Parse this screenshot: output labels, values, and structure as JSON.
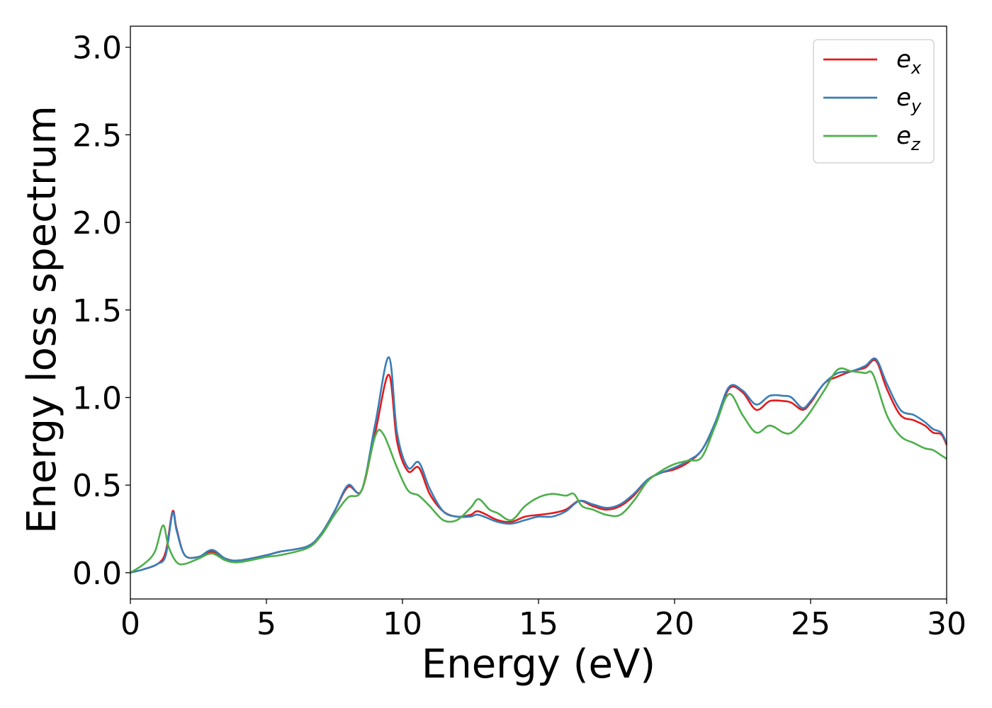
{
  "chart_data": {
    "type": "line",
    "title": "",
    "xlabel": "Energy (eV)",
    "ylabel": "Energy loss spectrum",
    "xlim": [
      0,
      30
    ],
    "ylim": [
      -0.15,
      3.12
    ],
    "xticks": [
      0,
      5,
      10,
      15,
      20,
      25,
      30
    ],
    "xtick_labels": [
      "0",
      "5",
      "10",
      "15",
      "20",
      "25",
      "30"
    ],
    "yticks": [
      0.0,
      0.5,
      1.0,
      1.5,
      2.0,
      2.5,
      3.0
    ],
    "ytick_labels": [
      "0.0",
      "0.5",
      "1.0",
      "1.5",
      "2.0",
      "2.5",
      "3.0"
    ],
    "grid": false,
    "legend_position": "top-right",
    "series": [
      {
        "name": "e_x",
        "label_base": "e",
        "label_sub": "x",
        "color": "#e41a1c",
        "points": [
          [
            0,
            0
          ],
          [
            0.5,
            0.02
          ],
          [
            1.0,
            0.05
          ],
          [
            1.3,
            0.12
          ],
          [
            1.55,
            0.35
          ],
          [
            1.7,
            0.25
          ],
          [
            2.0,
            0.1
          ],
          [
            2.5,
            0.09
          ],
          [
            3.0,
            0.12
          ],
          [
            3.5,
            0.08
          ],
          [
            4.0,
            0.07
          ],
          [
            5.0,
            0.1
          ],
          [
            5.5,
            0.12
          ],
          [
            6.5,
            0.15
          ],
          [
            7.0,
            0.22
          ],
          [
            7.5,
            0.35
          ],
          [
            8.0,
            0.49
          ],
          [
            8.5,
            0.47
          ],
          [
            9.0,
            0.8
          ],
          [
            9.5,
            1.13
          ],
          [
            9.8,
            0.75
          ],
          [
            10.2,
            0.58
          ],
          [
            10.6,
            0.6
          ],
          [
            11.0,
            0.45
          ],
          [
            11.5,
            0.35
          ],
          [
            12.0,
            0.32
          ],
          [
            12.5,
            0.33
          ],
          [
            12.8,
            0.35
          ],
          [
            13.5,
            0.3
          ],
          [
            14.0,
            0.29
          ],
          [
            14.5,
            0.32
          ],
          [
            15.0,
            0.33
          ],
          [
            15.5,
            0.34
          ],
          [
            16.0,
            0.36
          ],
          [
            16.5,
            0.41
          ],
          [
            17.0,
            0.38
          ],
          [
            17.5,
            0.36
          ],
          [
            18.0,
            0.38
          ],
          [
            18.5,
            0.44
          ],
          [
            19.0,
            0.53
          ],
          [
            19.5,
            0.57
          ],
          [
            20.0,
            0.59
          ],
          [
            20.5,
            0.63
          ],
          [
            21.0,
            0.7
          ],
          [
            21.5,
            0.85
          ],
          [
            22.0,
            1.05
          ],
          [
            22.5,
            1.03
          ],
          [
            23.0,
            0.93
          ],
          [
            23.5,
            0.98
          ],
          [
            24.0,
            0.98
          ],
          [
            24.3,
            0.97
          ],
          [
            24.7,
            0.93
          ],
          [
            25.0,
            0.97
          ],
          [
            25.5,
            1.08
          ],
          [
            26.0,
            1.12
          ],
          [
            26.5,
            1.15
          ],
          [
            27.0,
            1.17
          ],
          [
            27.4,
            1.21
          ],
          [
            27.8,
            1.05
          ],
          [
            28.3,
            0.9
          ],
          [
            28.8,
            0.87
          ],
          [
            29.2,
            0.84
          ],
          [
            29.5,
            0.8
          ],
          [
            29.8,
            0.79
          ],
          [
            30.0,
            0.73
          ]
        ]
      },
      {
        "name": "e_y",
        "label_base": "e",
        "label_sub": "y",
        "color": "#377eb8",
        "points": [
          [
            0,
            0
          ],
          [
            0.5,
            0.02
          ],
          [
            1.0,
            0.05
          ],
          [
            1.3,
            0.1
          ],
          [
            1.55,
            0.34
          ],
          [
            1.7,
            0.24
          ],
          [
            2.0,
            0.1
          ],
          [
            2.5,
            0.09
          ],
          [
            3.0,
            0.13
          ],
          [
            3.5,
            0.08
          ],
          [
            4.0,
            0.07
          ],
          [
            5.0,
            0.1
          ],
          [
            5.5,
            0.12
          ],
          [
            6.5,
            0.15
          ],
          [
            7.0,
            0.22
          ],
          [
            7.5,
            0.35
          ],
          [
            8.0,
            0.5
          ],
          [
            8.5,
            0.47
          ],
          [
            9.0,
            0.85
          ],
          [
            9.5,
            1.23
          ],
          [
            9.8,
            0.8
          ],
          [
            10.2,
            0.6
          ],
          [
            10.6,
            0.63
          ],
          [
            11.0,
            0.48
          ],
          [
            11.5,
            0.35
          ],
          [
            12.0,
            0.32
          ],
          [
            12.5,
            0.32
          ],
          [
            12.8,
            0.33
          ],
          [
            13.5,
            0.29
          ],
          [
            14.0,
            0.28
          ],
          [
            14.5,
            0.3
          ],
          [
            15.0,
            0.32
          ],
          [
            15.5,
            0.32
          ],
          [
            16.0,
            0.35
          ],
          [
            16.5,
            0.41
          ],
          [
            17.0,
            0.39
          ],
          [
            17.5,
            0.37
          ],
          [
            18.0,
            0.39
          ],
          [
            18.5,
            0.45
          ],
          [
            19.0,
            0.53
          ],
          [
            19.5,
            0.57
          ],
          [
            20.0,
            0.6
          ],
          [
            20.5,
            0.64
          ],
          [
            21.0,
            0.7
          ],
          [
            21.5,
            0.86
          ],
          [
            22.0,
            1.06
          ],
          [
            22.5,
            1.04
          ],
          [
            23.0,
            0.96
          ],
          [
            23.5,
            1.01
          ],
          [
            24.0,
            1.01
          ],
          [
            24.3,
            1.0
          ],
          [
            24.7,
            0.94
          ],
          [
            25.0,
            0.98
          ],
          [
            25.5,
            1.08
          ],
          [
            26.0,
            1.14
          ],
          [
            26.5,
            1.15
          ],
          [
            27.0,
            1.18
          ],
          [
            27.4,
            1.22
          ],
          [
            27.8,
            1.08
          ],
          [
            28.3,
            0.93
          ],
          [
            28.8,
            0.9
          ],
          [
            29.2,
            0.86
          ],
          [
            29.5,
            0.82
          ],
          [
            29.8,
            0.8
          ],
          [
            30.0,
            0.74
          ]
        ]
      },
      {
        "name": "e_z",
        "label_base": "e",
        "label_sub": "z",
        "color": "#4daf4a",
        "points": [
          [
            0,
            0
          ],
          [
            0.5,
            0.05
          ],
          [
            0.9,
            0.12
          ],
          [
            1.2,
            0.27
          ],
          [
            1.4,
            0.15
          ],
          [
            1.7,
            0.06
          ],
          [
            2.0,
            0.05
          ],
          [
            2.5,
            0.08
          ],
          [
            3.0,
            0.11
          ],
          [
            3.5,
            0.07
          ],
          [
            4.0,
            0.06
          ],
          [
            5.0,
            0.09
          ],
          [
            5.5,
            0.1
          ],
          [
            6.5,
            0.14
          ],
          [
            7.0,
            0.21
          ],
          [
            7.5,
            0.33
          ],
          [
            8.0,
            0.43
          ],
          [
            8.5,
            0.47
          ],
          [
            9.0,
            0.78
          ],
          [
            9.3,
            0.79
          ],
          [
            9.8,
            0.6
          ],
          [
            10.2,
            0.47
          ],
          [
            10.6,
            0.44
          ],
          [
            11.0,
            0.38
          ],
          [
            11.5,
            0.3
          ],
          [
            12.0,
            0.3
          ],
          [
            12.5,
            0.37
          ],
          [
            12.8,
            0.42
          ],
          [
            13.2,
            0.36
          ],
          [
            13.5,
            0.34
          ],
          [
            14.0,
            0.3
          ],
          [
            14.5,
            0.38
          ],
          [
            15.0,
            0.43
          ],
          [
            15.5,
            0.45
          ],
          [
            16.0,
            0.44
          ],
          [
            16.3,
            0.45
          ],
          [
            16.6,
            0.38
          ],
          [
            17.0,
            0.36
          ],
          [
            17.5,
            0.33
          ],
          [
            18.0,
            0.33
          ],
          [
            18.5,
            0.41
          ],
          [
            19.0,
            0.52
          ],
          [
            19.5,
            0.58
          ],
          [
            20.0,
            0.62
          ],
          [
            20.5,
            0.64
          ],
          [
            21.0,
            0.66
          ],
          [
            21.5,
            0.84
          ],
          [
            22.0,
            1.02
          ],
          [
            22.5,
            0.9
          ],
          [
            23.0,
            0.8
          ],
          [
            23.5,
            0.84
          ],
          [
            24.0,
            0.8
          ],
          [
            24.3,
            0.8
          ],
          [
            24.7,
            0.86
          ],
          [
            25.0,
            0.92
          ],
          [
            25.5,
            1.04
          ],
          [
            26.0,
            1.16
          ],
          [
            26.5,
            1.15
          ],
          [
            27.0,
            1.14
          ],
          [
            27.3,
            1.13
          ],
          [
            27.8,
            0.9
          ],
          [
            28.3,
            0.78
          ],
          [
            28.8,
            0.74
          ],
          [
            29.2,
            0.71
          ],
          [
            29.5,
            0.7
          ],
          [
            29.8,
            0.67
          ],
          [
            30.0,
            0.65
          ]
        ]
      }
    ]
  }
}
